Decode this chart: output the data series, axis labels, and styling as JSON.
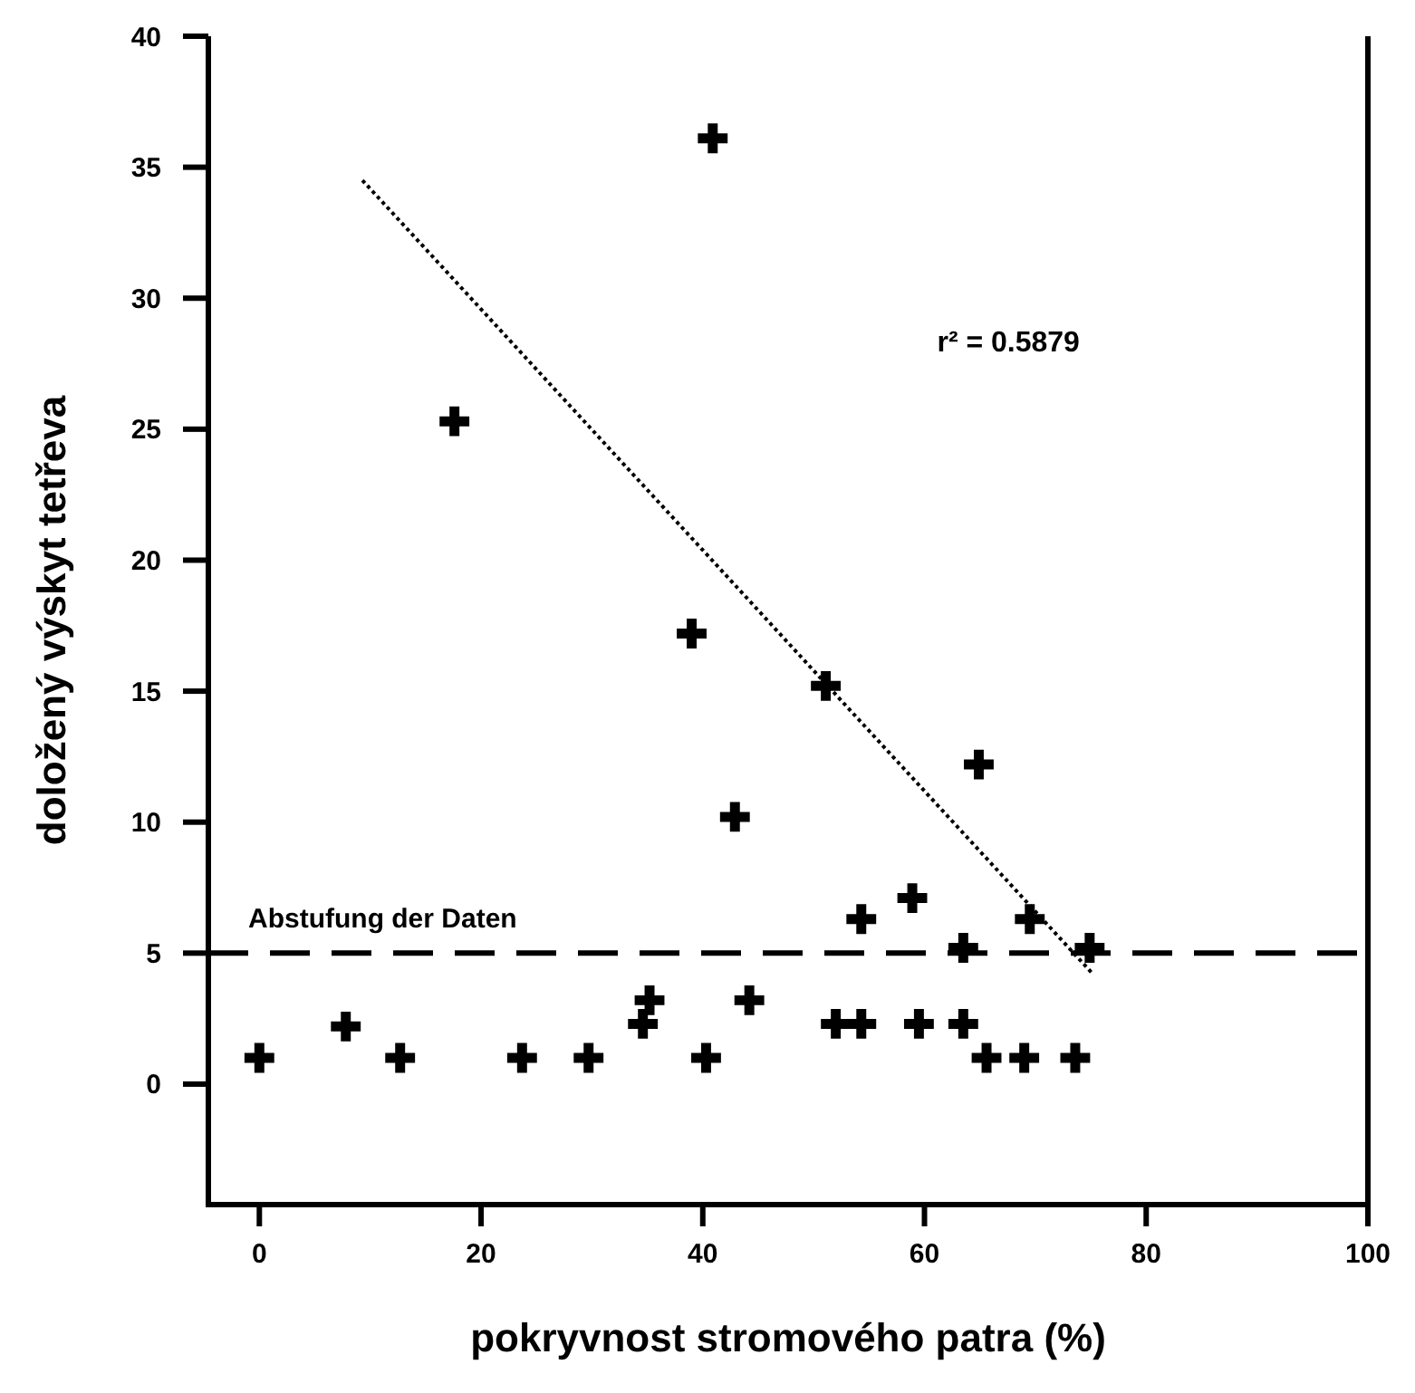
{
  "chart_data": {
    "type": "scatter",
    "xlabel": "pokryvnost stromového patra (%)",
    "ylabel": "doložený výskyt tetřeva",
    "xlim": [
      -4.6,
      100
    ],
    "ylim": [
      -4.6,
      40
    ],
    "xticks": [
      0,
      20,
      40,
      60,
      80,
      100
    ],
    "yticks": [
      0,
      5,
      10,
      15,
      20,
      25,
      30,
      35,
      40
    ],
    "grid": false,
    "marker": "cross",
    "series": [
      {
        "color": "#000000",
        "x": [
          0,
          7.8,
          12.7,
          23.7,
          29.7,
          34.6,
          35.2,
          40.3,
          44.2,
          42.9,
          52.0,
          54.3,
          54.3,
          58.9,
          59.5,
          63.5,
          63.5,
          65.6,
          69.0,
          69.5,
          73.6,
          74.9,
          64.9,
          51.1,
          39.0,
          17.6,
          40.9
        ],
        "values": [
          1,
          2.2,
          1,
          1,
          1,
          2.3,
          3.2,
          1,
          3.2,
          10.2,
          2.3,
          2.3,
          6.3,
          7.1,
          2.3,
          2.3,
          5.2,
          1,
          1,
          6.3,
          1,
          5.2,
          12.2,
          15.2,
          17.2,
          25.3,
          36.1
        ]
      },
      {
        "type": "line",
        "color": "#000000",
        "line_style": "dotted",
        "marker": "none",
        "x": [
          9.3,
          75.2
        ],
        "values": [
          34.5,
          4.2
        ]
      }
    ],
    "ref_lines": [
      {
        "axis": "y",
        "value": 5,
        "label": "Abstufung der Daten",
        "line_style": "dashed",
        "color": "#000000"
      }
    ],
    "annotations": [
      "r² = 0.5879"
    ]
  }
}
